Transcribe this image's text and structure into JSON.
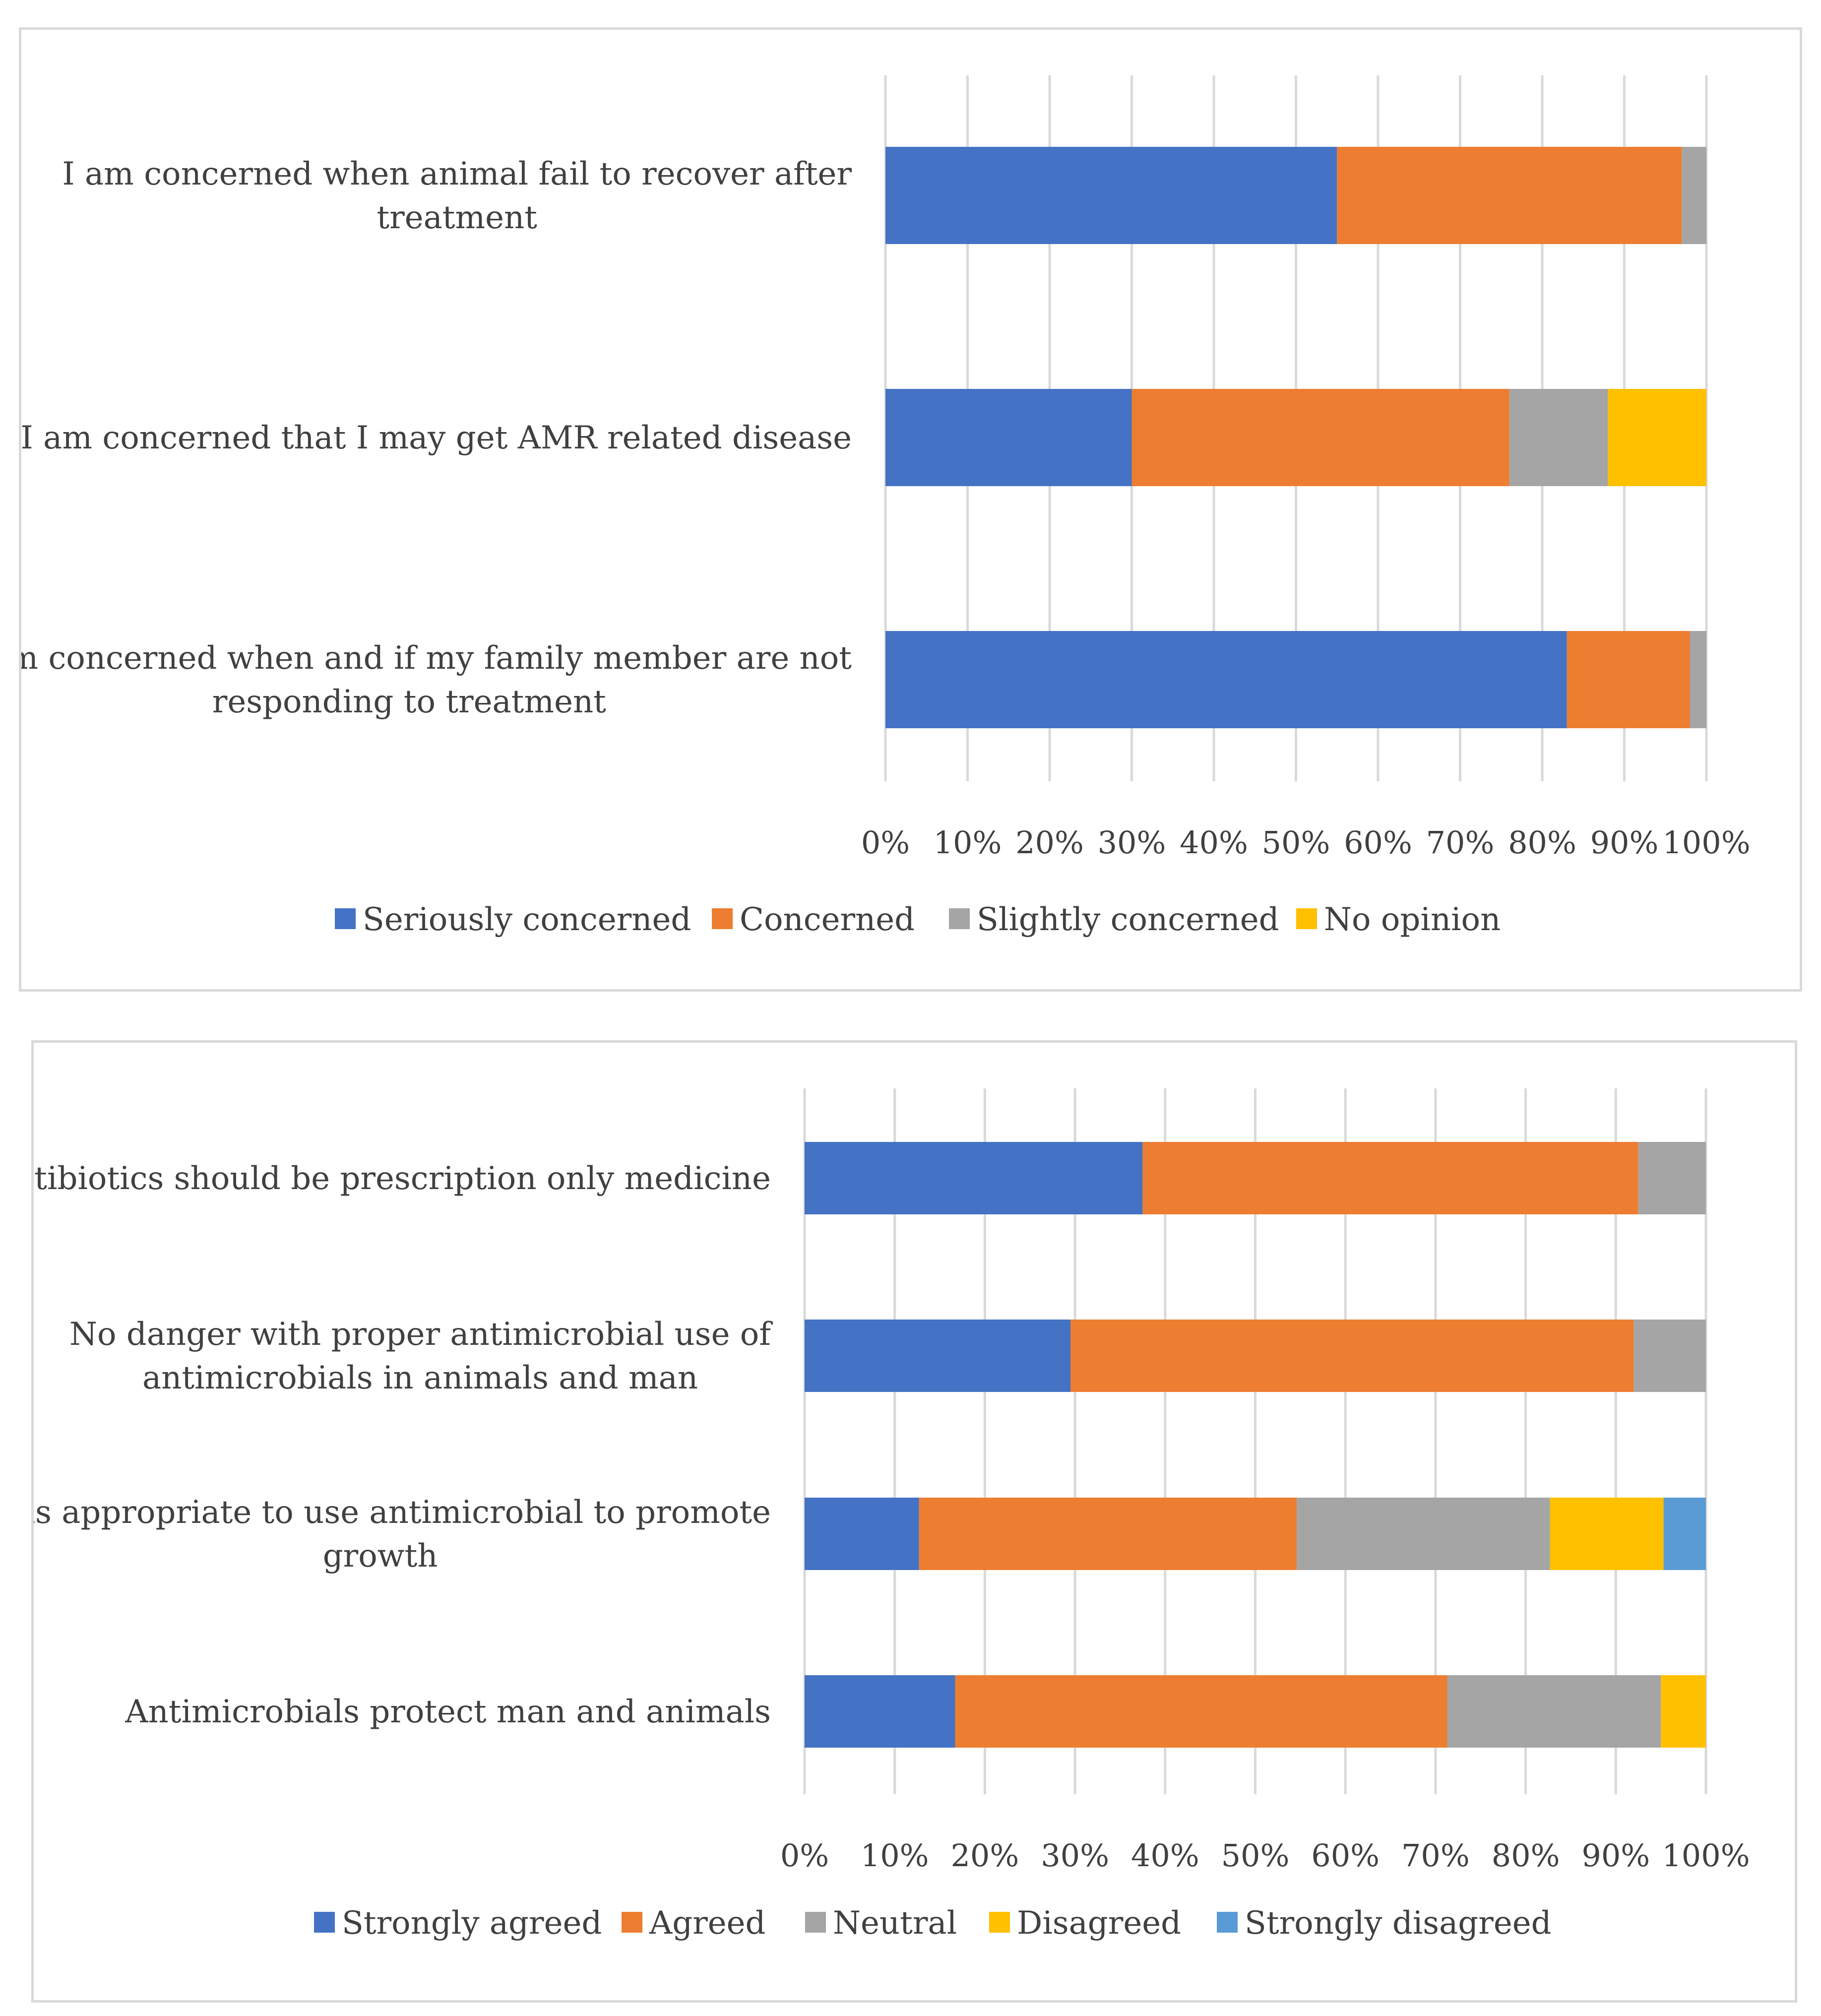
{
  "chart_data": [
    {
      "type": "bar",
      "orientation": "horizontal",
      "stacked": "percent",
      "categories": [
        [
          "I am concerned when animal fail to recover after",
          "treatment"
        ],
        [
          "I am concerned that I may get AMR related disease"
        ],
        [
          "I am concerned when and if my family member are not",
          "responding to treatment"
        ]
      ],
      "series": [
        {
          "name": "Seriously concerned",
          "color": "#4472c4",
          "values": [
            55,
            30,
            83
          ]
        },
        {
          "name": "Concerned",
          "color": "#ed7d31",
          "values": [
            42,
            46,
            15
          ]
        },
        {
          "name": "Slightly concerned",
          "color": "#a5a5a5",
          "values": [
            3,
            12,
            2
          ]
        },
        {
          "name": "No opinion",
          "color": "#ffc000",
          "values": [
            0,
            12,
            0
          ]
        }
      ],
      "xticks": [
        "0%",
        "10%",
        "20%",
        "30%",
        "40%",
        "50%",
        "60%",
        "70%",
        "80%",
        "90%",
        "100%"
      ],
      "xlim": [
        0,
        100
      ],
      "grid": true,
      "legend_position": "bottom"
    },
    {
      "type": "bar",
      "orientation": "horizontal",
      "stacked": "percent",
      "categories": [
        [
          "Antibiotics should be prescription only medicine"
        ],
        [
          "No danger with proper antimicrobial use of",
          "antimicrobials in animals and man"
        ],
        [
          "It is appropriate to use antimicrobial to promote",
          "growth"
        ],
        [
          "Antimicrobials protect man and animals"
        ]
      ],
      "series": [
        {
          "name": "Strongly agreed",
          "color": "#4472c4",
          "values": [
            37.5,
            29.5,
            12.7,
            16.7
          ]
        },
        {
          "name": "Agreed",
          "color": "#ed7d31",
          "values": [
            55,
            62.5,
            41.9,
            54.6
          ]
        },
        {
          "name": "Neutral",
          "color": "#a5a5a5",
          "values": [
            7.5,
            8,
            28.1,
            23.7
          ]
        },
        {
          "name": "Disagreed",
          "color": "#ffc000",
          "values": [
            0,
            0,
            12.6,
            5
          ]
        },
        {
          "name": "Strongly disagreed",
          "color": "#5b9bd5",
          "values": [
            0,
            0,
            4.7,
            0
          ]
        }
      ],
      "xticks": [
        "0%",
        "10%",
        "20%",
        "30%",
        "40%",
        "50%",
        "60%",
        "70%",
        "80%",
        "90%",
        "100%"
      ],
      "xlim": [
        0,
        100
      ],
      "grid": true,
      "legend_position": "bottom"
    }
  ]
}
